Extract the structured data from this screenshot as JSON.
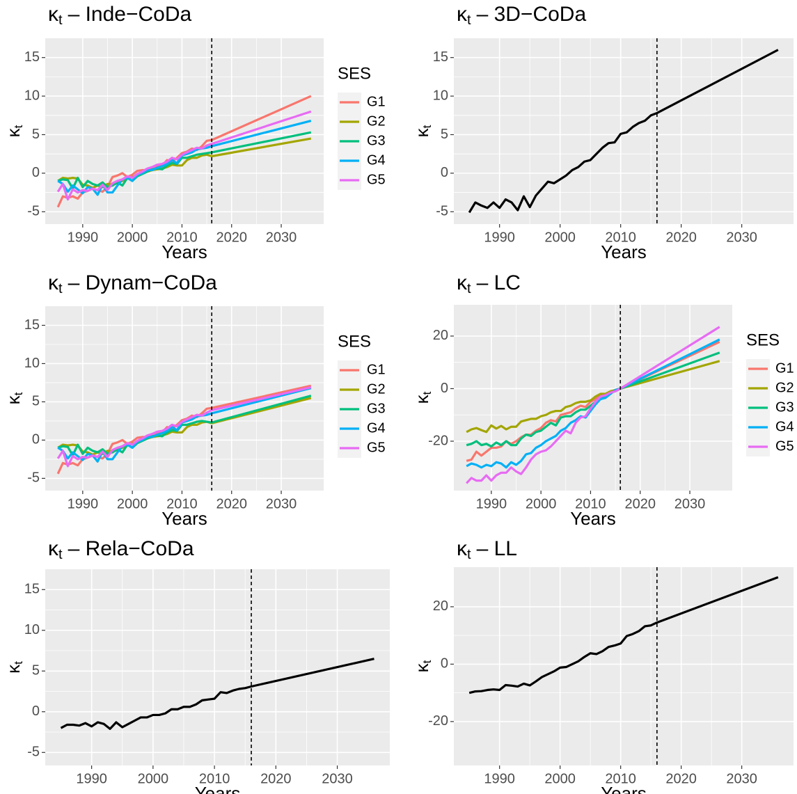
{
  "chart_data": [
    {
      "type": "line",
      "title": {
        "symbol": "κ",
        "subscript": "t",
        "text": "–  Inde−CoDa"
      },
      "xlabel": "Years",
      "ylabel": {
        "symbol": "κ",
        "subscript": "t"
      },
      "x": [
        1985,
        1986,
        1987,
        1988,
        1989,
        1990,
        1991,
        1992,
        1993,
        1994,
        1995,
        1996,
        1997,
        1998,
        1999,
        2000,
        2001,
        2002,
        2003,
        2004,
        2005,
        2006,
        2007,
        2008,
        2009,
        2010,
        2011,
        2012,
        2013,
        2014,
        2015,
        2016,
        2036
      ],
      "legend_title": "SES",
      "series": [
        {
          "name": "G1",
          "color": "#F8766D",
          "values": [
            -4.4,
            -3.0,
            -3.2,
            -3.0,
            -3.3,
            -2.5,
            -2.3,
            -2.0,
            -2.2,
            -2.4,
            -1.8,
            -0.5,
            -0.3,
            0.0,
            -0.5,
            -0.2,
            0.3,
            0.4,
            0.4,
            0.8,
            0.9,
            1.0,
            1.7,
            1.5,
            2.0,
            2.6,
            2.8,
            3.2,
            3.0,
            3.5,
            4.2,
            4.3,
            10.0
          ]
        },
        {
          "name": "G2",
          "color": "#A3A500",
          "values": [
            -1.0,
            -0.6,
            -0.7,
            -0.6,
            -0.7,
            -1.5,
            -1.6,
            -1.9,
            -1.6,
            -1.8,
            -1.4,
            -1.5,
            -1.3,
            -1.0,
            -0.7,
            -0.5,
            -0.3,
            0.0,
            0.2,
            0.4,
            0.5,
            0.6,
            0.8,
            1.1,
            1.0,
            1.0,
            1.7,
            2.0,
            2.0,
            2.3,
            2.4,
            2.2,
            4.5
          ]
        },
        {
          "name": "G3",
          "color": "#00BF7D",
          "values": [
            -1.0,
            -0.8,
            -0.9,
            -2.0,
            -0.6,
            -1.8,
            -1.0,
            -1.4,
            -1.6,
            -1.2,
            -1.8,
            -1.6,
            -1.2,
            -1.6,
            -0.6,
            -1.0,
            -0.4,
            -0.1,
            0.2,
            0.5,
            0.6,
            0.5,
            1.0,
            1.3,
            1.2,
            2.0,
            2.0,
            2.2,
            2.4,
            2.5,
            2.6,
            2.7,
            5.3
          ]
        },
        {
          "name": "G4",
          "color": "#00B0F6",
          "values": [
            -1.0,
            -1.4,
            -2.4,
            -1.6,
            -2.1,
            -2.6,
            -1.8,
            -2.0,
            -2.8,
            -1.5,
            -2.5,
            -2.5,
            -1.6,
            -0.8,
            -0.6,
            -1.0,
            -0.2,
            0.0,
            0.4,
            0.4,
            0.7,
            0.9,
            1.2,
            1.7,
            1.3,
            2.3,
            2.5,
            2.7,
            3.1,
            3.2,
            3.3,
            3.5,
            6.8
          ]
        },
        {
          "name": "G5",
          "color": "#E76BF3",
          "values": [
            -2.4,
            -1.4,
            -3.4,
            -2.1,
            -2.5,
            -2.2,
            -2.3,
            -2.0,
            -2.2,
            -1.5,
            -2.2,
            -1.3,
            -1.0,
            -0.8,
            -0.4,
            -0.6,
            -0.1,
            0.2,
            0.6,
            0.8,
            1.1,
            1.2,
            1.5,
            2.0,
            1.8,
            2.4,
            2.7,
            3.0,
            3.3,
            3.2,
            3.6,
            3.8,
            8.0
          ]
        }
      ],
      "xlim": [
        1982.45,
        2038.55
      ],
      "ylim": [
        -6.6,
        17.5
      ],
      "xticks": [
        1990,
        2000,
        2010,
        2020,
        2030
      ],
      "yticks": [
        -5,
        0,
        5,
        10,
        15
      ],
      "grid": true,
      "vline_x": 2016
    },
    {
      "type": "line",
      "title": {
        "symbol": "κ",
        "subscript": "t",
        "text": "– 3D−CoDa"
      },
      "xlabel": "Years",
      "ylabel": {
        "symbol": "κ",
        "subscript": "t"
      },
      "x": [
        1985,
        1986,
        1987,
        1988,
        1989,
        1990,
        1991,
        1992,
        1993,
        1994,
        1995,
        1996,
        1997,
        1998,
        1999,
        2000,
        2001,
        2002,
        2003,
        2004,
        2005,
        2006,
        2007,
        2008,
        2009,
        2010,
        2011,
        2012,
        2013,
        2014,
        2015,
        2016,
        2036
      ],
      "series": [
        {
          "color": "#000000",
          "values": [
            -5.1,
            -3.8,
            -4.2,
            -4.5,
            -3.8,
            -4.5,
            -3.4,
            -3.8,
            -4.8,
            -3.0,
            -4.4,
            -2.9,
            -2.0,
            -1.1,
            -1.3,
            -0.8,
            -0.3,
            0.4,
            0.8,
            1.5,
            1.7,
            2.5,
            3.3,
            3.9,
            4.0,
            5.1,
            5.3,
            6.0,
            6.5,
            6.8,
            7.5,
            7.8,
            16.0
          ]
        }
      ],
      "xlim": [
        1982.45,
        2038.55
      ],
      "ylim": [
        -6.6,
        17.5
      ],
      "xticks": [
        1990,
        2000,
        2010,
        2020,
        2030
      ],
      "yticks": [
        -5,
        0,
        5,
        10,
        15
      ],
      "grid": true,
      "vline_x": 2016
    },
    {
      "type": "line",
      "title": {
        "symbol": "κ",
        "subscript": "t",
        "text": "– Dynam−CoDa"
      },
      "xlabel": "Years",
      "ylabel": {
        "symbol": "κ",
        "subscript": "t"
      },
      "x": [
        1985,
        1986,
        1987,
        1988,
        1989,
        1990,
        1991,
        1992,
        1993,
        1994,
        1995,
        1996,
        1997,
        1998,
        1999,
        2000,
        2001,
        2002,
        2003,
        2004,
        2005,
        2006,
        2007,
        2008,
        2009,
        2010,
        2011,
        2012,
        2013,
        2014,
        2015,
        2016,
        2036
      ],
      "legend_title": "SES",
      "series": [
        {
          "name": "G1",
          "color": "#F8766D",
          "values": [
            -4.4,
            -3.0,
            -3.2,
            -3.0,
            -3.3,
            -2.5,
            -2.3,
            -2.0,
            -2.2,
            -2.4,
            -1.8,
            -0.5,
            -0.3,
            0.0,
            -0.5,
            -0.2,
            0.3,
            0.4,
            0.4,
            0.8,
            0.9,
            1.0,
            1.7,
            1.5,
            2.0,
            2.6,
            2.8,
            3.2,
            3.0,
            3.5,
            4.1,
            4.2,
            7.1
          ]
        },
        {
          "name": "G2",
          "color": "#A3A500",
          "values": [
            -1.0,
            -0.6,
            -0.7,
            -0.6,
            -0.7,
            -1.5,
            -1.6,
            -1.9,
            -1.6,
            -1.8,
            -1.4,
            -1.5,
            -1.3,
            -1.0,
            -0.7,
            -0.5,
            -0.3,
            0.0,
            0.2,
            0.4,
            0.5,
            0.6,
            0.8,
            1.1,
            1.0,
            1.0,
            1.7,
            2.0,
            2.0,
            2.3,
            2.4,
            2.2,
            5.5
          ]
        },
        {
          "name": "G3",
          "color": "#00BF7D",
          "values": [
            -1.0,
            -0.8,
            -0.9,
            -2.0,
            -0.6,
            -1.8,
            -1.0,
            -1.4,
            -1.6,
            -1.2,
            -1.8,
            -1.6,
            -1.2,
            -1.6,
            -0.6,
            -1.0,
            -0.4,
            -0.1,
            0.2,
            0.5,
            0.6,
            0.5,
            1.0,
            1.3,
            1.2,
            2.0,
            2.0,
            2.2,
            2.4,
            2.5,
            2.4,
            2.3,
            5.8
          ]
        },
        {
          "name": "G4",
          "color": "#00B0F6",
          "values": [
            -1.0,
            -1.4,
            -2.4,
            -1.6,
            -2.1,
            -2.6,
            -1.8,
            -2.0,
            -2.8,
            -1.5,
            -2.5,
            -2.5,
            -1.6,
            -0.8,
            -0.6,
            -1.0,
            -0.2,
            0.0,
            0.4,
            0.4,
            0.7,
            0.9,
            1.2,
            1.7,
            1.3,
            2.3,
            2.5,
            2.7,
            3.1,
            3.2,
            3.3,
            3.5,
            6.8
          ]
        },
        {
          "name": "G5",
          "color": "#E76BF3",
          "values": [
            -2.4,
            -1.4,
            -3.4,
            -2.1,
            -2.5,
            -2.2,
            -2.3,
            -2.0,
            -2.2,
            -1.5,
            -2.2,
            -1.3,
            -1.0,
            -0.8,
            -0.4,
            -0.6,
            -0.1,
            0.2,
            0.6,
            0.8,
            1.1,
            1.2,
            1.5,
            2.0,
            1.8,
            2.4,
            2.7,
            3.0,
            3.3,
            3.2,
            3.6,
            3.9,
            6.9
          ]
        }
      ],
      "xlim": [
        1982.45,
        2038.55
      ],
      "ylim": [
        -6.6,
        17.5
      ],
      "xticks": [
        1990,
        2000,
        2010,
        2020,
        2030
      ],
      "yticks": [
        -5,
        0,
        5,
        10,
        15
      ],
      "grid": true,
      "vline_x": 2016
    },
    {
      "type": "line",
      "title": {
        "symbol": "κ",
        "subscript": "t",
        "text": "– LC"
      },
      "xlabel": "Years",
      "ylabel": {
        "symbol": "κ",
        "subscript": "t"
      },
      "x": [
        1985,
        1986,
        1987,
        1988,
        1989,
        1990,
        1991,
        1992,
        1993,
        1994,
        1995,
        1996,
        1997,
        1998,
        1999,
        2000,
        2001,
        2002,
        2003,
        2004,
        2005,
        2006,
        2007,
        2008,
        2009,
        2010,
        2011,
        2012,
        2013,
        2014,
        2015,
        2016,
        2036
      ],
      "legend_title": "SES",
      "series": [
        {
          "name": "G1",
          "color": "#F8766D",
          "values": [
            -27.5,
            -27,
            -24,
            -25.5,
            -24,
            -22.5,
            -22.5,
            -22,
            -20,
            -21,
            -20,
            -18.5,
            -17.5,
            -17.5,
            -16,
            -15,
            -13,
            -12,
            -12.5,
            -10,
            -9.5,
            -9,
            -7.5,
            -6.5,
            -7,
            -5,
            -4,
            -2.5,
            -3,
            -2,
            -0.5,
            0,
            17.8
          ]
        },
        {
          "name": "G2",
          "color": "#A3A500",
          "values": [
            -16.5,
            -15.5,
            -15,
            -15.8,
            -16.5,
            -14,
            -15.2,
            -14.2,
            -15.5,
            -14.5,
            -14.5,
            -12.5,
            -12,
            -11.5,
            -11.5,
            -10.5,
            -10,
            -9,
            -8.5,
            -8.5,
            -7,
            -6.5,
            -5.5,
            -5,
            -5,
            -4.5,
            -3,
            -2,
            -2,
            -1,
            -0.5,
            0,
            10.5
          ]
        },
        {
          "name": "G3",
          "color": "#00BF7D",
          "values": [
            -21.5,
            -21,
            -20,
            -21.5,
            -21,
            -22,
            -20.5,
            -21.5,
            -20,
            -21.5,
            -21.5,
            -19,
            -17.5,
            -18,
            -16.5,
            -16,
            -14.5,
            -13,
            -14,
            -11,
            -10.5,
            -10.5,
            -9,
            -8,
            -8,
            -6.5,
            -5,
            -3,
            -3.5,
            -1.5,
            -1,
            0,
            13.7
          ]
        },
        {
          "name": "G4",
          "color": "#00B0F6",
          "values": [
            -29.5,
            -28.5,
            -29,
            -30,
            -29,
            -29.5,
            -28,
            -28.5,
            -30,
            -28,
            -29,
            -27.5,
            -25,
            -24.5,
            -22.5,
            -21.5,
            -20,
            -19,
            -18,
            -16,
            -15,
            -13,
            -12,
            -10.5,
            -11,
            -8.5,
            -6,
            -4,
            -3.5,
            -2,
            -0.5,
            0,
            18.7
          ]
        },
        {
          "name": "G5",
          "color": "#E76BF3",
          "values": [
            -36,
            -34,
            -35,
            -35,
            -33,
            -35,
            -33,
            -32,
            -32,
            -30,
            -31.5,
            -32.5,
            -30,
            -27,
            -25,
            -24,
            -23.5,
            -22,
            -20,
            -18,
            -16,
            -17,
            -13,
            -11,
            -10.5,
            -7.5,
            -5,
            -3,
            -2.5,
            -1.5,
            -1,
            0,
            23.5
          ]
        }
      ],
      "xlim": [
        1982.45,
        2038.55
      ],
      "ylim": [
        -38.8,
        31.9
      ],
      "xticks": [
        1990,
        2000,
        2010,
        2020,
        2030
      ],
      "yticks": [
        -20,
        0,
        20
      ],
      "grid": true,
      "vline_x": 2016
    },
    {
      "type": "line",
      "title": {
        "symbol": "κ",
        "subscript": "t",
        "text": "– Rela−CoDa"
      },
      "xlabel": "Years",
      "ylabel": {
        "symbol": "κ",
        "subscript": "t"
      },
      "x": [
        1985,
        1986,
        1987,
        1988,
        1989,
        1990,
        1991,
        1992,
        1993,
        1994,
        1995,
        1996,
        1997,
        1998,
        1999,
        2000,
        2001,
        2002,
        2003,
        2004,
        2005,
        2006,
        2007,
        2008,
        2009,
        2010,
        2011,
        2012,
        2013,
        2014,
        2015,
        2016,
        2036
      ],
      "series": [
        {
          "color": "#000000",
          "values": [
            -2.0,
            -1.6,
            -1.6,
            -1.7,
            -1.4,
            -1.8,
            -1.3,
            -1.5,
            -2.1,
            -1.3,
            -1.9,
            -1.5,
            -1.1,
            -0.7,
            -0.7,
            -0.4,
            -0.4,
            -0.2,
            0.3,
            0.3,
            0.6,
            0.6,
            0.9,
            1.4,
            1.5,
            1.6,
            2.4,
            2.3,
            2.6,
            2.8,
            2.9,
            3.1,
            6.5
          ]
        }
      ],
      "xlim": [
        1982.45,
        2038.55
      ],
      "ylim": [
        -6.6,
        17.5
      ],
      "xticks": [
        1990,
        2000,
        2010,
        2020,
        2030
      ],
      "yticks": [
        -5,
        0,
        5,
        10,
        15
      ],
      "grid": true,
      "vline_x": 2016
    },
    {
      "type": "line",
      "title": {
        "symbol": "κ",
        "subscript": "t",
        "text": "– LL"
      },
      "xlabel": "Years",
      "ylabel": {
        "symbol": "κ",
        "subscript": "t"
      },
      "x": [
        1985,
        1986,
        1987,
        1988,
        1989,
        1990,
        1991,
        1992,
        1993,
        1994,
        1995,
        1996,
        1997,
        1998,
        1999,
        2000,
        2001,
        2002,
        2003,
        2004,
        2005,
        2006,
        2007,
        2008,
        2009,
        2010,
        2011,
        2012,
        2013,
        2014,
        2015,
        2016,
        2036
      ],
      "series": [
        {
          "color": "#000000",
          "values": [
            -10,
            -9.5,
            -9.4,
            -9,
            -8.8,
            -9,
            -7.3,
            -7.5,
            -7.8,
            -6.8,
            -7.4,
            -6,
            -4.5,
            -3.5,
            -2.5,
            -1.2,
            -1,
            0,
            1,
            2.5,
            3.8,
            3.5,
            4.5,
            6,
            6.5,
            7.2,
            9.8,
            10.5,
            11.5,
            13.2,
            13.5,
            14.5,
            30.3
          ]
        }
      ],
      "xlim": [
        1982.45,
        2038.55
      ],
      "ylim": [
        -35.3,
        33.8
      ],
      "xticks": [
        1990,
        2000,
        2010,
        2020,
        2030
      ],
      "yticks": [
        -20,
        0,
        20
      ],
      "grid": true,
      "vline_x": 2016
    }
  ]
}
